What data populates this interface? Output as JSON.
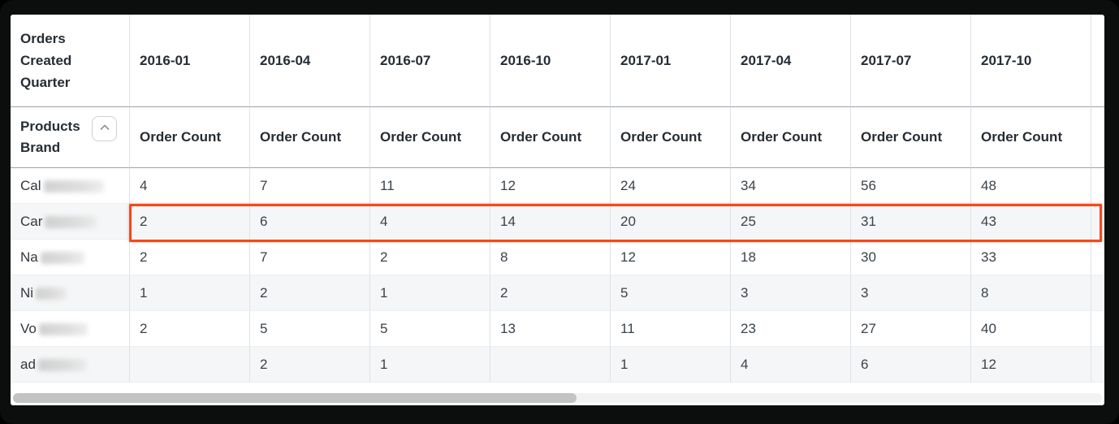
{
  "table": {
    "corner_header": "Orders Created Quarter",
    "row_dimension": "Products Brand",
    "measure_label": "Order Count",
    "quarters": [
      "2016-01",
      "2016-04",
      "2016-07",
      "2016-10",
      "2017-01",
      "2017-04",
      "2017-07",
      "2017-10"
    ],
    "rows": [
      {
        "label_visible": "Cal",
        "label_redacted": true,
        "highlighted": false,
        "values": [
          "4",
          "7",
          "11",
          "12",
          "24",
          "34",
          "56",
          "48"
        ]
      },
      {
        "label_visible": "Car",
        "label_redacted": true,
        "highlighted": true,
        "values": [
          "2",
          "6",
          "4",
          "14",
          "20",
          "25",
          "31",
          "43"
        ]
      },
      {
        "label_visible": "Na",
        "label_redacted": true,
        "highlighted": false,
        "values": [
          "2",
          "7",
          "2",
          "8",
          "12",
          "18",
          "30",
          "33"
        ]
      },
      {
        "label_visible": "Ni",
        "label_redacted": true,
        "highlighted": false,
        "values": [
          "1",
          "2",
          "1",
          "2",
          "5",
          "3",
          "3",
          "8"
        ]
      },
      {
        "label_visible": "Vo",
        "label_redacted": true,
        "highlighted": false,
        "values": [
          "2",
          "5",
          "5",
          "13",
          "11",
          "23",
          "27",
          "40"
        ]
      },
      {
        "label_visible": "ad",
        "label_redacted": true,
        "highlighted": false,
        "values": [
          "",
          "2",
          "1",
          "",
          "1",
          "4",
          "6",
          "12"
        ]
      }
    ],
    "icons": {
      "collapse_button": "chevron-up-icon"
    },
    "colors": {
      "highlight_border": "#f5491b",
      "header_text": "#262d33",
      "body_text": "#3a424a",
      "stripe_row": "#f5f6f7",
      "grid_line": "#dfe2e5",
      "header_rule": "#9aa1a7",
      "frame": "#0c0d0d",
      "scrollbar_thumb": "#c3c3c3"
    }
  }
}
